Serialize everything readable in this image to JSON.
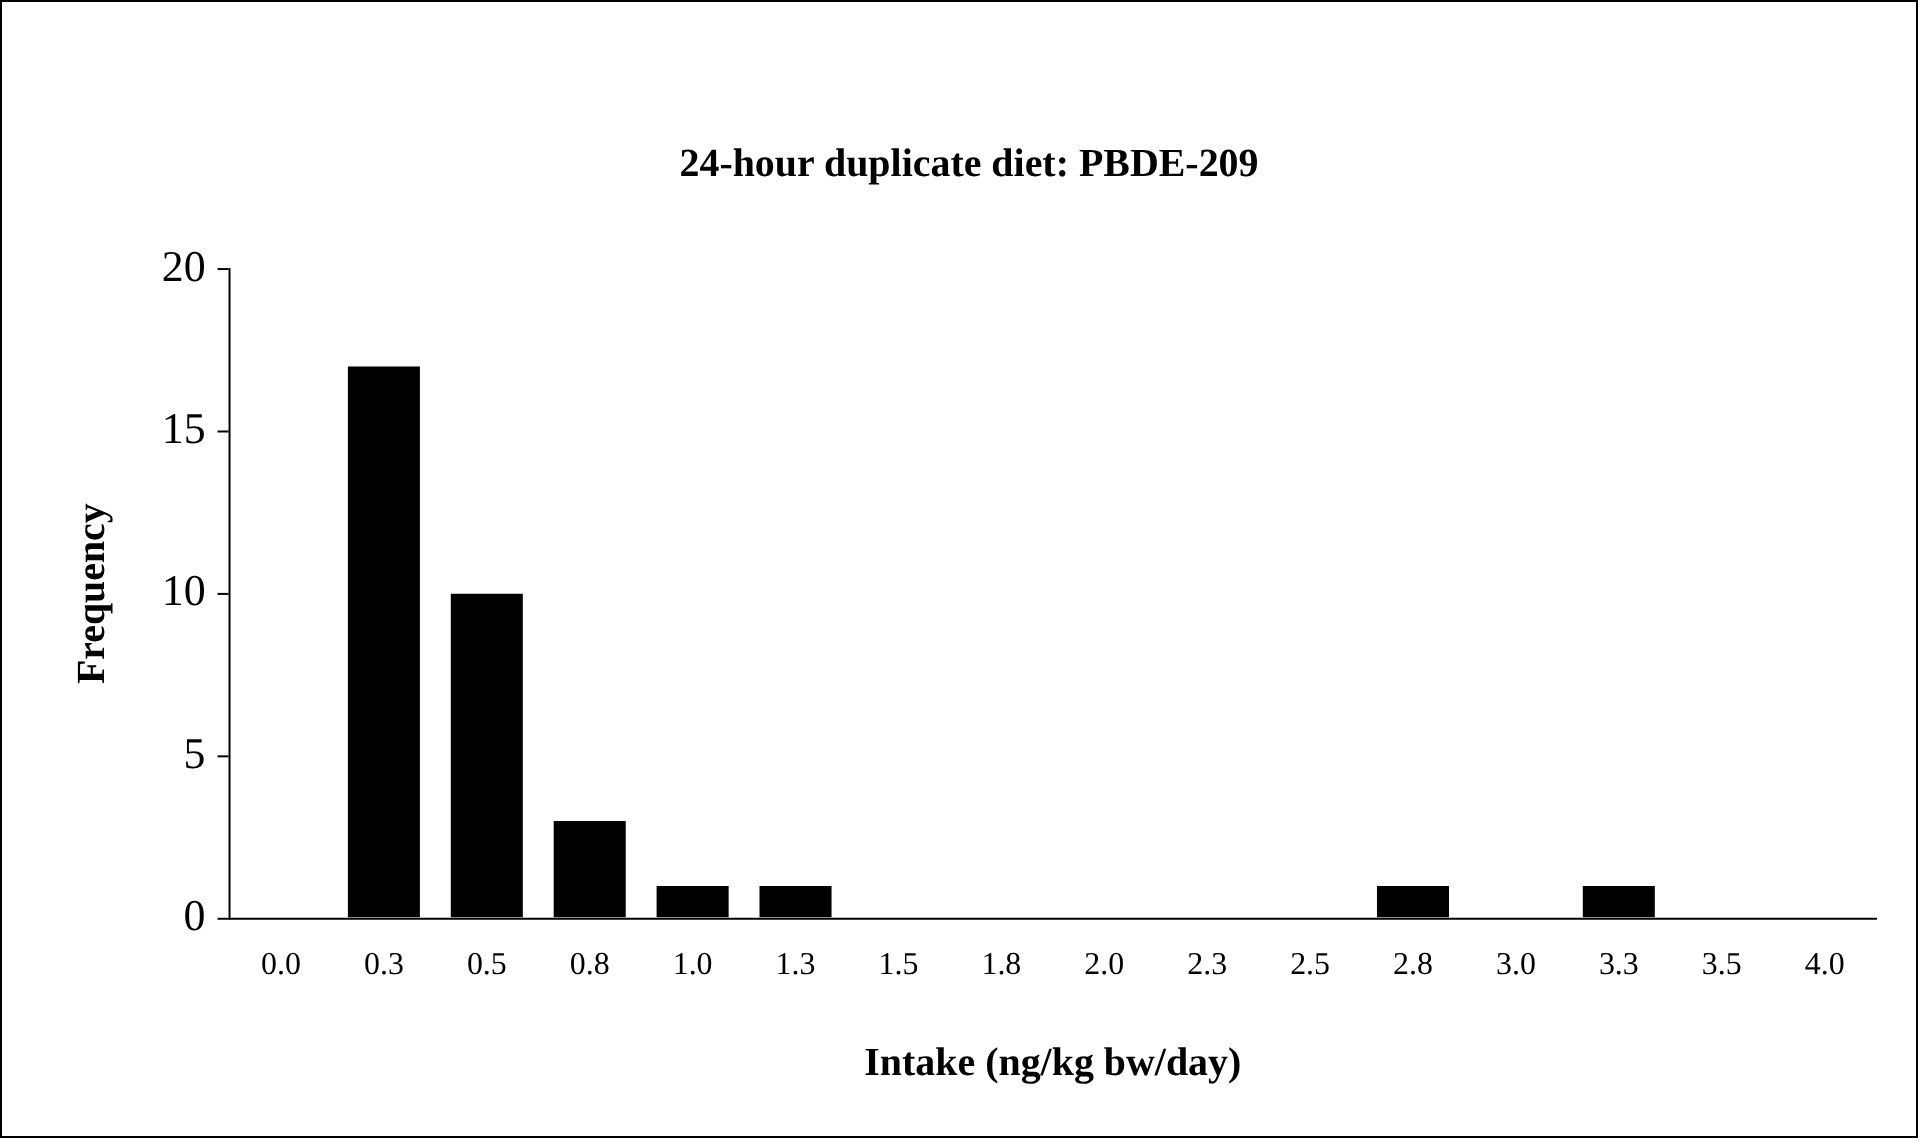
{
  "chart_data": {
    "type": "bar",
    "title": "24-hour duplicate diet: PBDE-209",
    "xlabel": "Intake (ng/kg bw/day)",
    "ylabel": "Frequency",
    "categories": [
      "0.0",
      "0.3",
      "0.5",
      "0.8",
      "1.0",
      "1.3",
      "1.5",
      "1.8",
      "2.0",
      "2.3",
      "2.5",
      "2.8",
      "3.0",
      "3.3",
      "3.5",
      "4.0"
    ],
    "values": [
      0,
      17,
      10,
      3,
      1,
      1,
      0,
      0,
      0,
      0,
      0,
      1,
      0,
      1,
      0,
      0
    ],
    "color": "#000000",
    "ylim": [
      0,
      20
    ],
    "yticks": [
      0,
      5,
      10,
      15,
      20
    ],
    "grid": false,
    "legend": false
  }
}
